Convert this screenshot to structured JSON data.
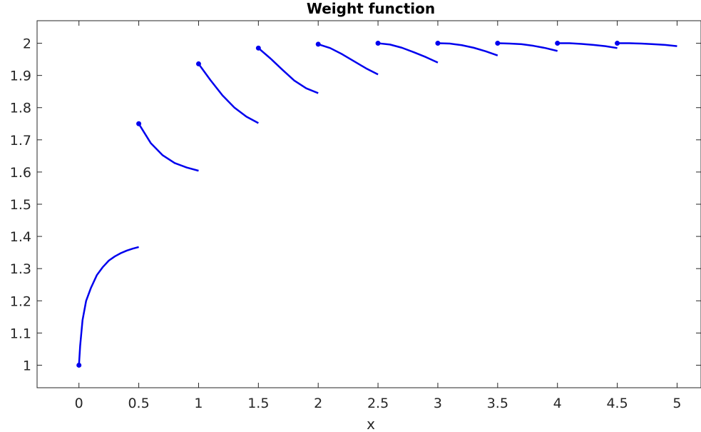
{
  "chart_data": {
    "type": "line",
    "title": "Weight function",
    "xlabel": "x",
    "ylabel": "",
    "xlim": [
      -0.35,
      5.2
    ],
    "ylim": [
      0.93,
      2.07
    ],
    "grid": false,
    "box": true,
    "x_ticks": [
      "0",
      "0.5",
      "1",
      "1.5",
      "2",
      "2.5",
      "3",
      "3.5",
      "4",
      "4.5",
      "5"
    ],
    "x_tick_values": [
      0,
      0.5,
      1,
      1.5,
      2,
      2.5,
      3,
      3.5,
      4,
      4.5,
      5
    ],
    "y_ticks": [
      "1",
      "1.1",
      "1.2",
      "1.3",
      "1.4",
      "1.5",
      "1.6",
      "1.7",
      "1.8",
      "1.9",
      "2"
    ],
    "y_tick_values": [
      1,
      1.1,
      1.2,
      1.3,
      1.4,
      1.5,
      1.6,
      1.7,
      1.8,
      1.9,
      2
    ],
    "line_color": "#0000ee",
    "series": [
      {
        "x": [
          0,
          0.01,
          0.03,
          0.06,
          0.1,
          0.15,
          0.2,
          0.25,
          0.3,
          0.35,
          0.4,
          0.45,
          0.5
        ],
        "y": [
          1.0,
          1.06,
          1.14,
          1.2,
          1.24,
          1.28,
          1.305,
          1.325,
          1.338,
          1.348,
          1.356,
          1.362,
          1.367
        ]
      },
      {
        "x": [
          0.5,
          0.6,
          0.7,
          0.8,
          0.9,
          1.0
        ],
        "y": [
          1.75,
          1.69,
          1.652,
          1.628,
          1.614,
          1.604
        ]
      },
      {
        "x": [
          1.0,
          1.1,
          1.2,
          1.3,
          1.4,
          1.5
        ],
        "y": [
          1.936,
          1.885,
          1.838,
          1.8,
          1.772,
          1.752
        ]
      },
      {
        "x": [
          1.5,
          1.6,
          1.7,
          1.8,
          1.9,
          2.0
        ],
        "y": [
          1.985,
          1.953,
          1.918,
          1.884,
          1.86,
          1.845
        ]
      },
      {
        "x": [
          2.0,
          2.1,
          2.2,
          2.3,
          2.4,
          2.5
        ],
        "y": [
          1.997,
          1.985,
          1.966,
          1.944,
          1.922,
          1.903
        ]
      },
      {
        "x": [
          2.5,
          2.6,
          2.7,
          2.8,
          2.9,
          3.0
        ],
        "y": [
          2.0,
          1.996,
          1.986,
          1.972,
          1.957,
          1.94
        ]
      },
      {
        "x": [
          3.0,
          3.1,
          3.2,
          3.3,
          3.4,
          3.5
        ],
        "y": [
          2.0,
          1.999,
          1.994,
          1.986,
          1.975,
          1.962
        ]
      },
      {
        "x": [
          3.5,
          3.6,
          3.7,
          3.8,
          3.9,
          4.0
        ],
        "y": [
          2.0,
          1.999,
          1.997,
          1.992,
          1.985,
          1.976
        ]
      },
      {
        "x": [
          4.0,
          4.1,
          4.2,
          4.3,
          4.4,
          4.5
        ],
        "y": [
          2.0,
          2.0,
          1.998,
          1.995,
          1.991,
          1.985
        ]
      },
      {
        "x": [
          4.5,
          4.6,
          4.7,
          4.8,
          4.9,
          5.0
        ],
        "y": [
          2.0,
          2.0,
          1.999,
          1.997,
          1.995,
          1.991
        ]
      }
    ],
    "markers": [
      {
        "x": 0,
        "y": 1.0
      },
      {
        "x": 0.5,
        "y": 1.75
      },
      {
        "x": 1.0,
        "y": 1.936
      },
      {
        "x": 1.5,
        "y": 1.985
      },
      {
        "x": 2.0,
        "y": 1.997
      },
      {
        "x": 2.5,
        "y": 2.0
      },
      {
        "x": 3.0,
        "y": 2.0
      },
      {
        "x": 3.5,
        "y": 2.0
      },
      {
        "x": 4.0,
        "y": 2.0
      },
      {
        "x": 4.5,
        "y": 2.0
      }
    ]
  }
}
